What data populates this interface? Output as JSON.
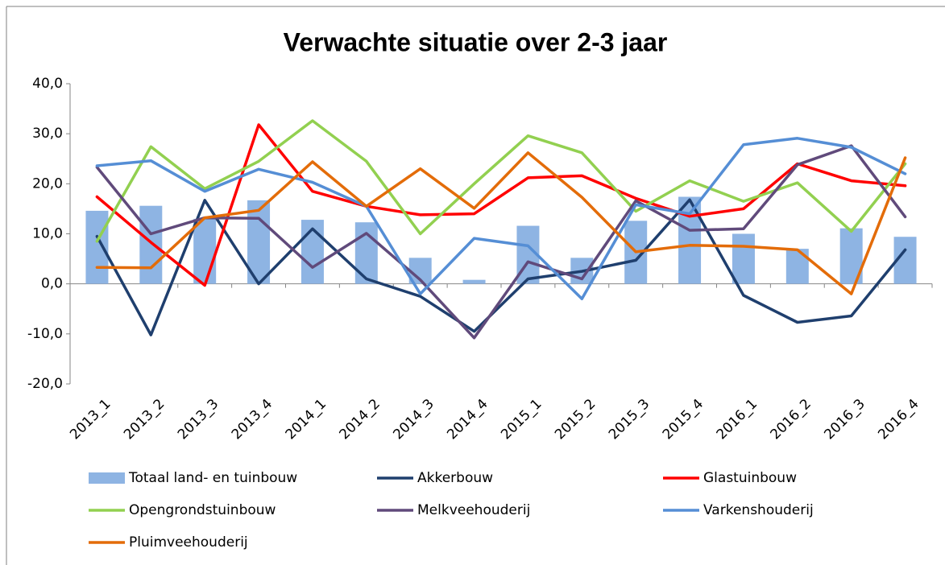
{
  "chart_data": {
    "type": "combo",
    "title": "Verwachte situatie over 2-3 jaar",
    "categories": [
      "2013_1",
      "2013_2",
      "2013_3",
      "2013_4",
      "2014_1",
      "2014_2",
      "2014_3",
      "2014_4",
      "2015_1",
      "2015_2",
      "2015_3",
      "2015_4",
      "2016_1",
      "2016_2",
      "2016_3",
      "2016_4"
    ],
    "ylim": [
      -20,
      40
    ],
    "yticks": [
      {
        "value": -20,
        "label": "-20,0"
      },
      {
        "value": -10,
        "label": "-10,0"
      },
      {
        "value": 0,
        "label": "0,0"
      },
      {
        "value": 10,
        "label": "10,0"
      },
      {
        "value": 20,
        "label": "20,0"
      },
      {
        "value": 30,
        "label": "30,0"
      },
      {
        "value": 40,
        "label": "40,0"
      }
    ],
    "grid": false,
    "legend": "bottom",
    "series": [
      {
        "name": "Totaal land- en tuinbouw",
        "type": "bar",
        "color": "#8eb4e3",
        "values": [
          14.6,
          15.6,
          13.0,
          16.7,
          12.8,
          12.3,
          5.2,
          0.8,
          11.6,
          5.2,
          12.6,
          17.4,
          10.0,
          7.0,
          11.1,
          9.4
        ]
      },
      {
        "name": "Akkerbouw",
        "type": "line",
        "color": "#1f3f6e",
        "values": [
          9.5,
          -10.2,
          16.7,
          0.0,
          11.0,
          1.0,
          -2.5,
          -9.5,
          1.0,
          2.5,
          4.7,
          16.8,
          -2.3,
          -7.7,
          -6.4,
          6.8
        ]
      },
      {
        "name": "Glastuinbouw",
        "type": "line",
        "color": "#ff0000",
        "values": [
          17.4,
          8.3,
          -0.3,
          31.8,
          18.5,
          15.5,
          13.8,
          14.0,
          21.2,
          21.6,
          17.1,
          13.5,
          15.0,
          24.0,
          20.6,
          19.6
        ]
      },
      {
        "name": "Opengrondstuinbouw",
        "type": "line",
        "color": "#92d050",
        "values": [
          8.5,
          27.4,
          19.0,
          24.5,
          32.6,
          24.5,
          10.0,
          20.0,
          29.6,
          26.2,
          14.5,
          20.6,
          16.5,
          20.2,
          10.5,
          24.0
        ]
      },
      {
        "name": "Melkveehouderij",
        "type": "line",
        "color": "#604a7b",
        "values": [
          23.3,
          10.0,
          13.2,
          13.1,
          3.3,
          10.1,
          0.8,
          -10.8,
          4.4,
          1.0,
          16.6,
          10.7,
          11.0,
          23.8,
          27.6,
          13.4
        ]
      },
      {
        "name": "Varkenshouderij",
        "type": "line",
        "color": "#558ed5",
        "values": [
          23.6,
          24.6,
          18.5,
          22.9,
          20.3,
          15.5,
          -2.0,
          9.1,
          7.6,
          -3.0,
          15.8,
          14.0,
          27.8,
          29.1,
          27.3,
          22.0
        ]
      },
      {
        "name": "Pluimveehouderij",
        "type": "line",
        "color": "#e36c09",
        "values": [
          3.3,
          3.2,
          13.2,
          14.7,
          24.4,
          15.5,
          23.0,
          15.1,
          26.2,
          17.3,
          6.4,
          7.7,
          7.5,
          6.8,
          -2.0,
          25.2
        ]
      }
    ]
  }
}
